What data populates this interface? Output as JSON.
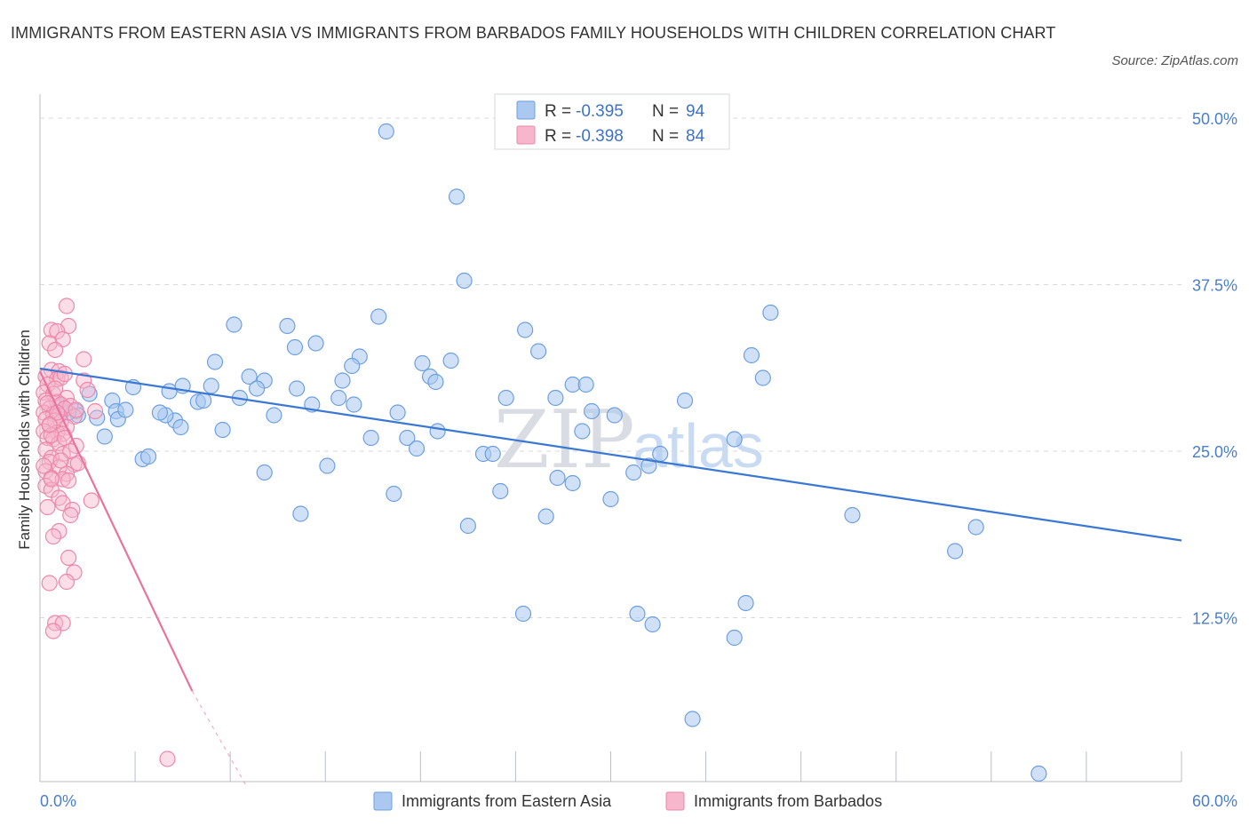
{
  "title": "IMMIGRANTS FROM EASTERN ASIA VS IMMIGRANTS FROM BARBADOS FAMILY HOUSEHOLDS WITH CHILDREN CORRELATION CHART",
  "source": "Source: ZipAtlas.com",
  "watermark": {
    "zip": "ZIP",
    "atlas": "atlas"
  },
  "legend": {
    "r_label": "R =",
    "n_label": "N =",
    "series": [
      {
        "r": "-0.395",
        "n": "94"
      },
      {
        "r": "-0.398",
        "n": "84"
      }
    ]
  },
  "colors": {
    "blue_fill": "#aac8f0",
    "blue_stroke": "#6d9fe0",
    "blue_line": "#3a78d4",
    "pink_fill": "#f6b6cb",
    "pink_stroke": "#ec87a8",
    "pink_line": "#e8739d",
    "tick_text": "#4a7ec9",
    "grid": "#d5d9de"
  },
  "chart_data": {
    "type": "scatter",
    "title": "IMMIGRANTS FROM EASTERN ASIA VS IMMIGRANTS FROM BARBADOS FAMILY HOUSEHOLDS WITH CHILDREN CORRELATION CHART",
    "xlabel": "",
    "ylabel": "Family Households with Children",
    "xlim": [
      0,
      60
    ],
    "ylim": [
      0,
      50
    ],
    "x_tick_labels": [
      "0.0%",
      "60.0%"
    ],
    "y_ticks": [
      12.5,
      25.0,
      37.5,
      50.0
    ],
    "y_tick_labels": [
      "12.5%",
      "25.0%",
      "37.5%",
      "50.0%"
    ],
    "grid": true,
    "series": [
      {
        "name": "Immigrants from Eastern Asia",
        "r": -0.395,
        "n": 94,
        "trend": {
          "x1": 0,
          "y1": 31.2,
          "x2": 60,
          "y2": 18.3
        },
        "points": [
          [
            18.2,
            49.0
          ],
          [
            21.9,
            44.1
          ],
          [
            22.3,
            37.8
          ],
          [
            10.2,
            34.5
          ],
          [
            13.0,
            34.4
          ],
          [
            17.8,
            35.1
          ],
          [
            25.5,
            34.1
          ],
          [
            13.4,
            32.8
          ],
          [
            14.5,
            33.1
          ],
          [
            16.8,
            32.1
          ],
          [
            26.2,
            32.5
          ],
          [
            9.2,
            31.7
          ],
          [
            16.4,
            31.4
          ],
          [
            20.1,
            31.6
          ],
          [
            21.6,
            31.8
          ],
          [
            11.0,
            30.6
          ],
          [
            11.8,
            30.3
          ],
          [
            15.9,
            30.3
          ],
          [
            20.5,
            30.6
          ],
          [
            20.8,
            30.2
          ],
          [
            38.4,
            35.4
          ],
          [
            37.4,
            32.2
          ],
          [
            38.0,
            30.5
          ],
          [
            4.9,
            29.8
          ],
          [
            6.8,
            29.5
          ],
          [
            7.5,
            29.9
          ],
          [
            9.0,
            29.9
          ],
          [
            11.4,
            29.7
          ],
          [
            13.5,
            29.7
          ],
          [
            15.7,
            29.0
          ],
          [
            14.3,
            28.5
          ],
          [
            16.5,
            28.5
          ],
          [
            24.5,
            29.0
          ],
          [
            27.1,
            29.0
          ],
          [
            28.0,
            30.0
          ],
          [
            28.7,
            30.0
          ],
          [
            33.9,
            28.8
          ],
          [
            2.6,
            29.3
          ],
          [
            3.8,
            28.8
          ],
          [
            4.0,
            28.0
          ],
          [
            7.1,
            27.3
          ],
          [
            8.3,
            28.7
          ],
          [
            8.6,
            28.8
          ],
          [
            12.3,
            27.7
          ],
          [
            18.8,
            27.9
          ],
          [
            29.0,
            28.0
          ],
          [
            30.2,
            27.7
          ],
          [
            1.2,
            28.0
          ],
          [
            1.9,
            28.0
          ],
          [
            2.0,
            27.7
          ],
          [
            4.1,
            27.4
          ],
          [
            6.6,
            27.7
          ],
          [
            7.4,
            26.8
          ],
          [
            9.6,
            26.6
          ],
          [
            20.9,
            26.5
          ],
          [
            28.5,
            26.5
          ],
          [
            3.4,
            26.1
          ],
          [
            17.4,
            26.0
          ],
          [
            19.3,
            26.0
          ],
          [
            19.8,
            25.2
          ],
          [
            36.5,
            25.9
          ],
          [
            5.4,
            24.4
          ],
          [
            5.7,
            24.6
          ],
          [
            11.8,
            23.4
          ],
          [
            15.1,
            23.9
          ],
          [
            23.3,
            24.8
          ],
          [
            23.8,
            24.8
          ],
          [
            32.6,
            24.8
          ],
          [
            31.2,
            23.4
          ],
          [
            32.0,
            23.9
          ],
          [
            27.2,
            23.0
          ],
          [
            28.0,
            22.6
          ],
          [
            18.6,
            21.8
          ],
          [
            24.2,
            22.0
          ],
          [
            30.0,
            21.4
          ],
          [
            13.7,
            20.3
          ],
          [
            26.6,
            20.1
          ],
          [
            22.5,
            19.4
          ],
          [
            42.7,
            20.2
          ],
          [
            49.2,
            19.3
          ],
          [
            48.1,
            17.5
          ],
          [
            37.1,
            13.6
          ],
          [
            25.4,
            12.8
          ],
          [
            31.4,
            12.8
          ],
          [
            32.2,
            12.0
          ],
          [
            36.5,
            11.0
          ],
          [
            34.3,
            4.9
          ],
          [
            52.5,
            0.8
          ],
          [
            1.0,
            28.4
          ],
          [
            1.5,
            27.9
          ],
          [
            4.5,
            28.1
          ],
          [
            3.0,
            27.5
          ],
          [
            10.5,
            29.0
          ],
          [
            6.3,
            27.9
          ]
        ]
      },
      {
        "name": "Immigrants from Barbados",
        "r": -0.398,
        "n": 84,
        "trend": {
          "x1": 0,
          "y1": 31.0,
          "x2": 8.0,
          "y2": 7.0,
          "dash_to": {
            "x": 10.8,
            "y": 0
          }
        },
        "points": [
          [
            1.4,
            35.9
          ],
          [
            1.5,
            34.4
          ],
          [
            0.6,
            34.1
          ],
          [
            0.9,
            34.0
          ],
          [
            1.2,
            33.4
          ],
          [
            0.5,
            33.1
          ],
          [
            0.8,
            32.6
          ],
          [
            2.3,
            31.9
          ],
          [
            0.6,
            31.1
          ],
          [
            1.0,
            31.0
          ],
          [
            0.3,
            30.6
          ],
          [
            0.9,
            30.4
          ],
          [
            1.1,
            30.5
          ],
          [
            2.3,
            30.3
          ],
          [
            0.4,
            30.0
          ],
          [
            2.5,
            29.6
          ],
          [
            0.2,
            29.4
          ],
          [
            0.7,
            29.3
          ],
          [
            1.4,
            29.0
          ],
          [
            0.3,
            28.8
          ],
          [
            0.9,
            28.7
          ],
          [
            1.1,
            28.5
          ],
          [
            1.6,
            28.4
          ],
          [
            0.5,
            28.2
          ],
          [
            1.3,
            28.2
          ],
          [
            2.9,
            28.0
          ],
          [
            0.2,
            27.9
          ],
          [
            0.7,
            27.8
          ],
          [
            1.0,
            27.7
          ],
          [
            1.8,
            27.6
          ],
          [
            0.3,
            27.4
          ],
          [
            0.8,
            27.3
          ],
          [
            1.1,
            27.2
          ],
          [
            0.5,
            26.9
          ],
          [
            1.4,
            26.8
          ],
          [
            0.2,
            26.5
          ],
          [
            0.9,
            26.4
          ],
          [
            1.2,
            26.3
          ],
          [
            0.4,
            26.0
          ],
          [
            0.7,
            25.9
          ],
          [
            1.0,
            25.6
          ],
          [
            1.9,
            25.4
          ],
          [
            0.3,
            25.1
          ],
          [
            1.2,
            24.8
          ],
          [
            0.6,
            24.5
          ],
          [
            0.5,
            24.2
          ],
          [
            1.8,
            24.0
          ],
          [
            2.0,
            24.1
          ],
          [
            1.0,
            23.8
          ],
          [
            0.3,
            23.5
          ],
          [
            1.4,
            23.3
          ],
          [
            0.6,
            23.0
          ],
          [
            1.2,
            22.9
          ],
          [
            1.5,
            22.8
          ],
          [
            0.3,
            22.4
          ],
          [
            0.6,
            22.1
          ],
          [
            2.7,
            21.3
          ],
          [
            1.0,
            21.5
          ],
          [
            1.2,
            21.1
          ],
          [
            0.4,
            20.8
          ],
          [
            1.7,
            20.6
          ],
          [
            1.6,
            20.2
          ],
          [
            1.0,
            19.0
          ],
          [
            0.7,
            18.6
          ],
          [
            1.5,
            17.0
          ],
          [
            1.8,
            15.9
          ],
          [
            0.5,
            15.1
          ],
          [
            1.4,
            15.2
          ],
          [
            0.8,
            12.1
          ],
          [
            1.2,
            12.1
          ],
          [
            0.7,
            11.5
          ],
          [
            6.7,
            1.9
          ],
          [
            0.4,
            28.6
          ],
          [
            0.9,
            27.9
          ],
          [
            0.6,
            26.2
          ],
          [
            1.3,
            26.0
          ],
          [
            0.8,
            29.7
          ],
          [
            1.6,
            25.0
          ],
          [
            0.5,
            27.0
          ],
          [
            1.1,
            24.3
          ],
          [
            0.2,
            23.9
          ],
          [
            1.9,
            28.1
          ],
          [
            0.6,
            22.9
          ],
          [
            1.3,
            30.8
          ]
        ]
      }
    ]
  }
}
